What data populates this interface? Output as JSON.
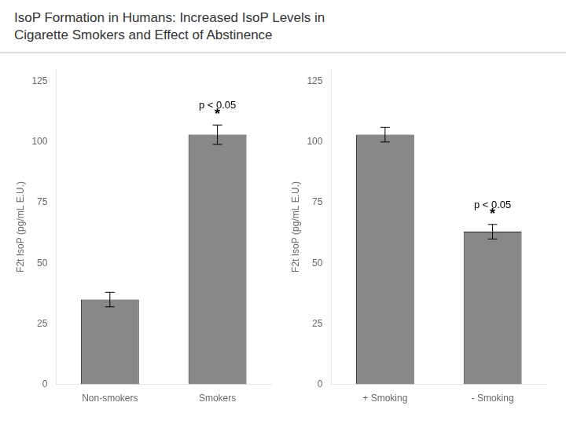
{
  "title": [
    "IsoP Formation in Humans: Increased IsoP Levels in",
    "Cigarette Smokers and Effect of Abstinence"
  ],
  "chart_data": [
    {
      "type": "bar",
      "categories": [
        "Non-smokers",
        "Smokers"
      ],
      "values": [
        35,
        103
      ],
      "errors": [
        3,
        4
      ],
      "color": "#888888",
      "ylabel": "F2t IsoP (pg/mL E.U.)",
      "ylim": [
        0,
        130
      ],
      "yticks": [
        0,
        25,
        50,
        75,
        100,
        125
      ],
      "grid": false,
      "annotations": [
        {
          "x": "Smokers",
          "text": "*"
        },
        {
          "x": "Smokers",
          "text": "p < 0.05"
        }
      ]
    },
    {
      "type": "bar",
      "categories": [
        "+ Smoking",
        "- Smoking"
      ],
      "values": [
        103,
        63
      ],
      "errors": [
        3,
        3
      ],
      "color": "#888888",
      "ylabel": "F2t IsoP (pg/mL E.U.)",
      "ylim": [
        0,
        130
      ],
      "yticks": [
        0,
        25,
        50,
        75,
        100,
        125
      ],
      "grid": false,
      "annotations": [
        {
          "x": "- Smoking",
          "text": "*"
        },
        {
          "x": "- Smoking",
          "text": "p < 0.05"
        }
      ]
    }
  ]
}
